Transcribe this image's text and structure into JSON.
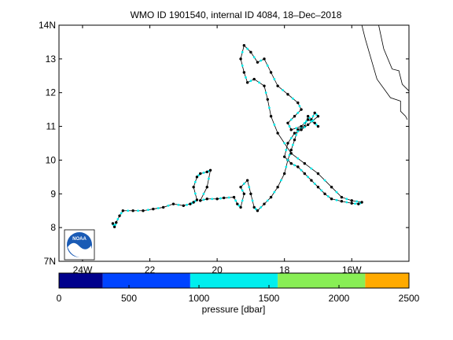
{
  "chart_data": {
    "type": "line",
    "title": "WMO ID 1901540, internal ID 4084, 18–Dec–2018",
    "xlim": [
      -24.7,
      -14.3
    ],
    "ylim": [
      7,
      14
    ],
    "x_ticks": [
      {
        "value": -24,
        "label": "24W"
      },
      {
        "value": -22,
        "label": "22"
      },
      {
        "value": -20,
        "label": "20"
      },
      {
        "value": -18,
        "label": "18"
      },
      {
        "value": -16,
        "label": "16W"
      }
    ],
    "y_ticks": [
      {
        "value": 7,
        "label": "7N"
      },
      {
        "value": 8,
        "label": "8"
      },
      {
        "value": 9,
        "label": "9"
      },
      {
        "value": 10,
        "label": "10"
      },
      {
        "value": 11,
        "label": "11"
      },
      {
        "value": 12,
        "label": "12"
      },
      {
        "value": 13,
        "label": "13"
      },
      {
        "value": 14,
        "label": "14N"
      }
    ],
    "series": [
      {
        "name": "",
        "points": [
          [
            -23.1,
            8.12
          ],
          [
            -23.05,
            8.02
          ],
          [
            -23.0,
            8.15
          ],
          [
            -22.9,
            8.35
          ],
          [
            -22.8,
            8.5
          ],
          [
            -22.5,
            8.5
          ],
          [
            -22.2,
            8.5
          ],
          [
            -21.9,
            8.55
          ],
          [
            -21.6,
            8.6
          ],
          [
            -21.3,
            8.7
          ],
          [
            -21.0,
            8.65
          ],
          [
            -20.8,
            8.7
          ],
          [
            -20.7,
            8.75
          ],
          [
            -20.6,
            8.82
          ],
          [
            -20.7,
            9.2
          ],
          [
            -20.6,
            9.5
          ],
          [
            -20.5,
            9.6
          ],
          [
            -20.3,
            9.65
          ],
          [
            -20.2,
            9.7
          ],
          [
            -20.3,
            9.2
          ],
          [
            -20.5,
            8.8
          ],
          [
            -20.3,
            8.85
          ],
          [
            -20.0,
            8.85
          ],
          [
            -19.8,
            8.88
          ],
          [
            -19.5,
            8.9
          ],
          [
            -19.4,
            8.7
          ],
          [
            -19.3,
            8.6
          ],
          [
            -19.2,
            9.0
          ],
          [
            -19.3,
            9.2
          ],
          [
            -19.1,
            9.4
          ],
          [
            -19.0,
            9.0
          ],
          [
            -18.9,
            8.6
          ],
          [
            -18.8,
            8.5
          ],
          [
            -18.6,
            8.7
          ],
          [
            -18.4,
            8.9
          ],
          [
            -18.2,
            9.2
          ],
          [
            -18.0,
            9.6
          ],
          [
            -17.9,
            10.0
          ],
          [
            -17.8,
            10.3
          ],
          [
            -17.7,
            10.6
          ],
          [
            -17.6,
            10.9
          ],
          [
            -17.4,
            11.0
          ],
          [
            -17.3,
            11.3
          ],
          [
            -17.2,
            11.2
          ],
          [
            -17.1,
            11.4
          ],
          [
            -17.0,
            11.3
          ],
          [
            -17.3,
            11.05
          ],
          [
            -17.5,
            10.9
          ],
          [
            -17.7,
            10.8
          ],
          [
            -17.9,
            10.5
          ],
          [
            -18.0,
            10.1
          ],
          [
            -17.8,
            9.9
          ],
          [
            -17.6,
            9.8
          ],
          [
            -17.4,
            9.6
          ],
          [
            -17.2,
            9.4
          ],
          [
            -17.0,
            9.2
          ],
          [
            -16.8,
            9.0
          ],
          [
            -16.6,
            8.85
          ],
          [
            -16.3,
            8.78
          ],
          [
            -16.0,
            8.72
          ],
          [
            -15.8,
            8.7
          ],
          [
            -15.7,
            8.75
          ],
          [
            -16.0,
            8.8
          ],
          [
            -16.3,
            8.9
          ],
          [
            -16.6,
            9.2
          ],
          [
            -17.0,
            9.6
          ],
          [
            -17.4,
            9.9
          ],
          [
            -17.8,
            10.2
          ],
          [
            -18.2,
            10.8
          ],
          [
            -18.4,
            11.3
          ],
          [
            -18.5,
            11.8
          ],
          [
            -18.6,
            12.2
          ],
          [
            -18.9,
            12.4
          ],
          [
            -19.1,
            12.3
          ],
          [
            -19.2,
            12.6
          ],
          [
            -19.3,
            13.0
          ],
          [
            -19.2,
            13.4
          ],
          [
            -19.0,
            13.2
          ],
          [
            -18.8,
            12.9
          ],
          [
            -18.6,
            13.0
          ],
          [
            -18.4,
            12.6
          ],
          [
            -18.2,
            12.2
          ],
          [
            -17.9,
            11.95
          ],
          [
            -17.6,
            11.7
          ],
          [
            -17.5,
            11.5
          ],
          [
            -17.7,
            11.3
          ],
          [
            -17.9,
            11.1
          ],
          [
            -17.8,
            10.9
          ],
          [
            -17.5,
            11.0
          ],
          [
            -17.3,
            11.2
          ],
          [
            -17.1,
            11.1
          ],
          [
            -17.0,
            11.0
          ]
        ]
      }
    ],
    "colorbar": {
      "label": "pressure [dbar]",
      "range": [
        0,
        2500
      ],
      "ticks": [
        {
          "value": 0,
          "label": "0"
        },
        {
          "value": 500,
          "label": "500"
        },
        {
          "value": 1000,
          "label": "1000"
        },
        {
          "value": 1500,
          "label": "1500"
        },
        {
          "value": 2000,
          "label": "2000"
        },
        {
          "value": 2500,
          "label": "2500"
        }
      ],
      "bands": [
        {
          "from": 0,
          "to": 312.5,
          "color": "#00008c"
        },
        {
          "from": 312.5,
          "to": 937.5,
          "color": "#0044ff"
        },
        {
          "from": 937.5,
          "to": 1562.5,
          "color": "#00eeee"
        },
        {
          "from": 1562.5,
          "to": 2187.5,
          "color": "#88ee55"
        },
        {
          "from": 2187.5,
          "to": 2500,
          "color": "#ffaa00"
        }
      ]
    },
    "coastline": [
      [
        -15.2,
        14.0
      ],
      [
        -15.05,
        13.3
      ],
      [
        -14.8,
        12.7
      ],
      [
        -14.6,
        12.65
      ],
      [
        -14.5,
        12.25
      ],
      [
        -14.4,
        12.15
      ],
      [
        -14.3,
        12.05
      ]
    ],
    "coastline2": [
      [
        -15.7,
        14.0
      ],
      [
        -15.6,
        13.6
      ],
      [
        -15.25,
        12.4
      ],
      [
        -14.85,
        11.85
      ],
      [
        -14.55,
        11.75
      ],
      [
        -14.55,
        11.45
      ],
      [
        -14.4,
        11.3
      ],
      [
        -14.35,
        11.2
      ]
    ],
    "colors": {
      "track": "#000000",
      "marker": "#000000",
      "marker_fill": "#00eeee",
      "logo_blue": "#1a5bb5"
    },
    "logo": {
      "text": "NOAA",
      "icon": "noaa-logo"
    }
  }
}
